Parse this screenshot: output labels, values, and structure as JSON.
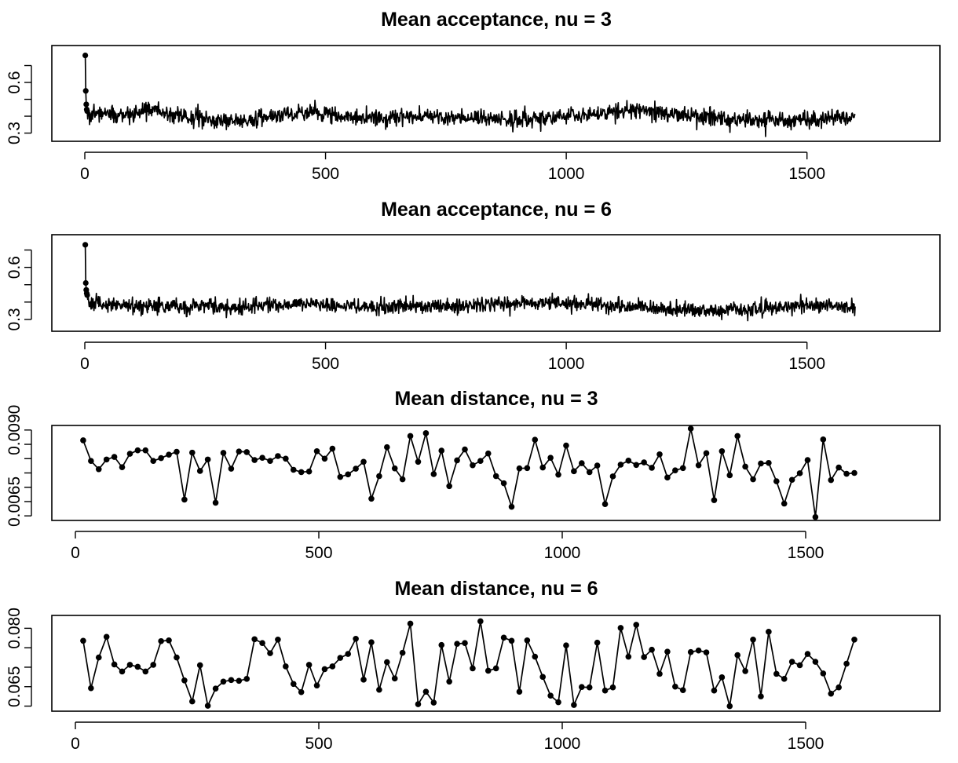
{
  "chart_data": [
    {
      "type": "line",
      "title": "Mean acceptance, nu = 3",
      "xlabel": "",
      "ylabel": "",
      "xlim": [
        0,
        1600
      ],
      "ylim": [
        0.27,
        0.8
      ],
      "x_ticks": [
        0,
        500,
        1000,
        1500
      ],
      "x_tick_labels": [
        "0",
        "500",
        "1000",
        "1500"
      ],
      "y_ticks": [
        0.3,
        0.6
      ],
      "y_tick_labels": [
        "0.3",
        "0.6"
      ],
      "y_minor_ticks": [
        0.4,
        0.5,
        0.7
      ],
      "grid": false,
      "legend": "none",
      "series": [
        {
          "initial_points": [
            [
              1,
              0.76
            ],
            [
              2,
              0.55
            ],
            [
              3,
              0.47
            ],
            [
              4,
              0.44
            ],
            [
              5,
              0.43
            ]
          ],
          "noise_segments": [
            [
              0,
              0.42
            ],
            [
              100,
              0.41
            ],
            [
              140,
              0.44
            ],
            [
              200,
              0.4
            ],
            [
              300,
              0.37
            ],
            [
              400,
              0.4
            ],
            [
              470,
              0.42
            ],
            [
              600,
              0.39
            ],
            [
              750,
              0.4
            ],
            [
              900,
              0.38
            ],
            [
              1000,
              0.4
            ],
            [
              1140,
              0.44
            ],
            [
              1300,
              0.39
            ],
            [
              1460,
              0.37
            ],
            [
              1600,
              0.4
            ]
          ],
          "noise_sd": 0.025,
          "n_points": 1600
        }
      ]
    },
    {
      "type": "line",
      "title": "Mean acceptance, nu = 6",
      "xlabel": "",
      "ylabel": "",
      "xlim": [
        0,
        1600
      ],
      "ylim": [
        0.25,
        0.77
      ],
      "x_ticks": [
        0,
        500,
        1000,
        1500
      ],
      "x_tick_labels": [
        "0",
        "500",
        "1000",
        "1500"
      ],
      "y_ticks": [
        0.3,
        0.6
      ],
      "y_tick_labels": [
        "0.3",
        "0.6"
      ],
      "y_minor_ticks": [
        0.4,
        0.5,
        0.7
      ],
      "grid": false,
      "legend": "none",
      "series": [
        {
          "initial_points": [
            [
              1,
              0.73
            ],
            [
              2,
              0.51
            ],
            [
              3,
              0.47
            ],
            [
              4,
              0.45
            ],
            [
              5,
              0.44
            ]
          ],
          "noise_segments": [
            [
              0,
              0.4
            ],
            [
              100,
              0.37
            ],
            [
              200,
              0.38
            ],
            [
              300,
              0.37
            ],
            [
              450,
              0.39
            ],
            [
              600,
              0.37
            ],
            [
              800,
              0.38
            ],
            [
              960,
              0.4
            ],
            [
              1100,
              0.38
            ],
            [
              1300,
              0.35
            ],
            [
              1400,
              0.36
            ],
            [
              1500,
              0.38
            ],
            [
              1600,
              0.37
            ]
          ],
          "noise_sd": 0.022,
          "n_points": 1600
        }
      ]
    },
    {
      "type": "line",
      "title": "Mean distance, nu = 3",
      "xlabel": "",
      "ylabel": "",
      "xlim": [
        0,
        1600
      ],
      "ylim": [
        0.00595,
        0.00905
      ],
      "x_ticks": [
        0,
        500,
        1000,
        1500
      ],
      "x_tick_labels": [
        "0",
        "500",
        "1000",
        "1500"
      ],
      "y_ticks": [
        0.0065,
        0.009
      ],
      "y_tick_labels": [
        "0.0065",
        "0.0090"
      ],
      "y_minor_ticks": [
        0.006,
        0.007,
        0.0075,
        0.008,
        0.0085
      ],
      "grid": false,
      "legend": "none",
      "series": [
        {
          "x": [
            16,
            32,
            48,
            64,
            80,
            96,
            112,
            128,
            144,
            160,
            176,
            192,
            208,
            224,
            240,
            256,
            272,
            288,
            304,
            320,
            336,
            352,
            368,
            384,
            400,
            416,
            432,
            448,
            464,
            480,
            496,
            512,
            528,
            544,
            560,
            576,
            592,
            608,
            624,
            640,
            656,
            672,
            688,
            704,
            720,
            736,
            752,
            768,
            784,
            800,
            816,
            832,
            848,
            864,
            880,
            896,
            912,
            928,
            944,
            960,
            976,
            992,
            1008,
            1024,
            1040,
            1056,
            1072,
            1088,
            1104,
            1120,
            1136,
            1152,
            1168,
            1184,
            1200,
            1216,
            1232,
            1248,
            1264,
            1280,
            1296,
            1312,
            1328,
            1344,
            1360,
            1376,
            1392,
            1408,
            1424,
            1440,
            1456,
            1472,
            1488,
            1504,
            1520,
            1536,
            1552,
            1568,
            1584,
            1600
          ],
          "y": [
            0.00864,
            0.00792,
            0.00763,
            0.00797,
            0.00806,
            0.0077,
            0.00817,
            0.00829,
            0.00829,
            0.00792,
            0.00802,
            0.00814,
            0.00824,
            0.00657,
            0.00821,
            0.00757,
            0.00797,
            0.00646,
            0.0082,
            0.00765,
            0.00825,
            0.00823,
            0.00795,
            0.00803,
            0.00792,
            0.00809,
            0.008,
            0.00761,
            0.00753,
            0.00755,
            0.00826,
            0.008,
            0.00835,
            0.00736,
            0.00745,
            0.00765,
            0.00789,
            0.0066,
            0.00739,
            0.0084,
            0.00766,
            0.00728,
            0.00879,
            0.00789,
            0.00889,
            0.00746,
            0.00828,
            0.00704,
            0.00794,
            0.00832,
            0.00777,
            0.00792,
            0.00818,
            0.00739,
            0.00714,
            0.00632,
            0.00766,
            0.00767,
            0.00866,
            0.00769,
            0.00803,
            0.00744,
            0.00846,
            0.00756,
            0.00784,
            0.00753,
            0.00776,
            0.00641,
            0.00738,
            0.00779,
            0.00793,
            0.00778,
            0.00787,
            0.00768,
            0.00815,
            0.00734,
            0.00759,
            0.00767,
            0.00905,
            0.00777,
            0.00819,
            0.00655,
            0.00826,
            0.00742,
            0.00879,
            0.00772,
            0.00728,
            0.00783,
            0.00785,
            0.00721,
            0.00643,
            0.00726,
            0.00749,
            0.00795,
            0.00596,
            0.00867,
            0.00725,
            0.00769,
            0.00747,
            0.0075
          ]
        }
      ]
    },
    {
      "type": "line",
      "title": "Mean distance, nu = 6",
      "xlabel": "",
      "ylabel": "",
      "xlim": [
        0,
        1600
      ],
      "ylim": [
        0.0595,
        0.0825
      ],
      "x_ticks": [
        0,
        500,
        1000,
        1500
      ],
      "x_tick_labels": [
        "0",
        "500",
        "1000",
        "1500"
      ],
      "y_ticks": [
        0.065,
        0.08
      ],
      "y_tick_labels": [
        "0.065",
        "0.080"
      ],
      "y_minor_ticks": [
        0.06,
        0.07,
        0.075
      ],
      "grid": false,
      "legend": "none",
      "series": [
        {
          "x": [
            16,
            32,
            48,
            64,
            80,
            96,
            112,
            128,
            144,
            160,
            176,
            192,
            208,
            224,
            240,
            256,
            272,
            288,
            304,
            320,
            336,
            352,
            368,
            384,
            400,
            416,
            432,
            448,
            464,
            480,
            496,
            512,
            528,
            544,
            560,
            576,
            592,
            608,
            624,
            640,
            656,
            672,
            688,
            704,
            720,
            736,
            752,
            768,
            784,
            800,
            816,
            832,
            848,
            864,
            880,
            896,
            912,
            928,
            944,
            960,
            976,
            992,
            1008,
            1024,
            1040,
            1056,
            1072,
            1088,
            1104,
            1120,
            1136,
            1152,
            1168,
            1184,
            1200,
            1216,
            1232,
            1248,
            1264,
            1280,
            1296,
            1312,
            1328,
            1344,
            1360,
            1376,
            1392,
            1408,
            1424,
            1440,
            1456,
            1472,
            1488,
            1504,
            1520,
            1536,
            1552,
            1568,
            1584,
            1600
          ],
          "y": [
            0.0768,
            0.0646,
            0.0725,
            0.0778,
            0.0707,
            0.0689,
            0.0706,
            0.0701,
            0.0689,
            0.0706,
            0.0767,
            0.0769,
            0.0725,
            0.0666,
            0.0612,
            0.0705,
            0.0601,
            0.0645,
            0.0663,
            0.0667,
            0.0665,
            0.067,
            0.0772,
            0.0762,
            0.0736,
            0.0771,
            0.0702,
            0.0657,
            0.0636,
            0.0706,
            0.0653,
            0.0695,
            0.0702,
            0.0724,
            0.0734,
            0.0773,
            0.0668,
            0.0764,
            0.0642,
            0.0713,
            0.0671,
            0.0737,
            0.0812,
            0.0605,
            0.0637,
            0.0609,
            0.0757,
            0.0663,
            0.076,
            0.0762,
            0.0697,
            0.0818,
            0.0691,
            0.0697,
            0.0776,
            0.0768,
            0.0637,
            0.0769,
            0.0727,
            0.0675,
            0.0627,
            0.061,
            0.0756,
            0.0603,
            0.0649,
            0.0648,
            0.0763,
            0.064,
            0.0648,
            0.0801,
            0.0727,
            0.0809,
            0.0726,
            0.0745,
            0.0683,
            0.074,
            0.065,
            0.0641,
            0.0739,
            0.0743,
            0.0738,
            0.064,
            0.0674,
            0.06,
            0.0731,
            0.069,
            0.0771,
            0.0625,
            0.0791,
            0.0683,
            0.067,
            0.0714,
            0.0705,
            0.0734,
            0.0714,
            0.0684,
            0.0632,
            0.0648,
            0.0709,
            0.0771
          ]
        }
      ]
    }
  ]
}
